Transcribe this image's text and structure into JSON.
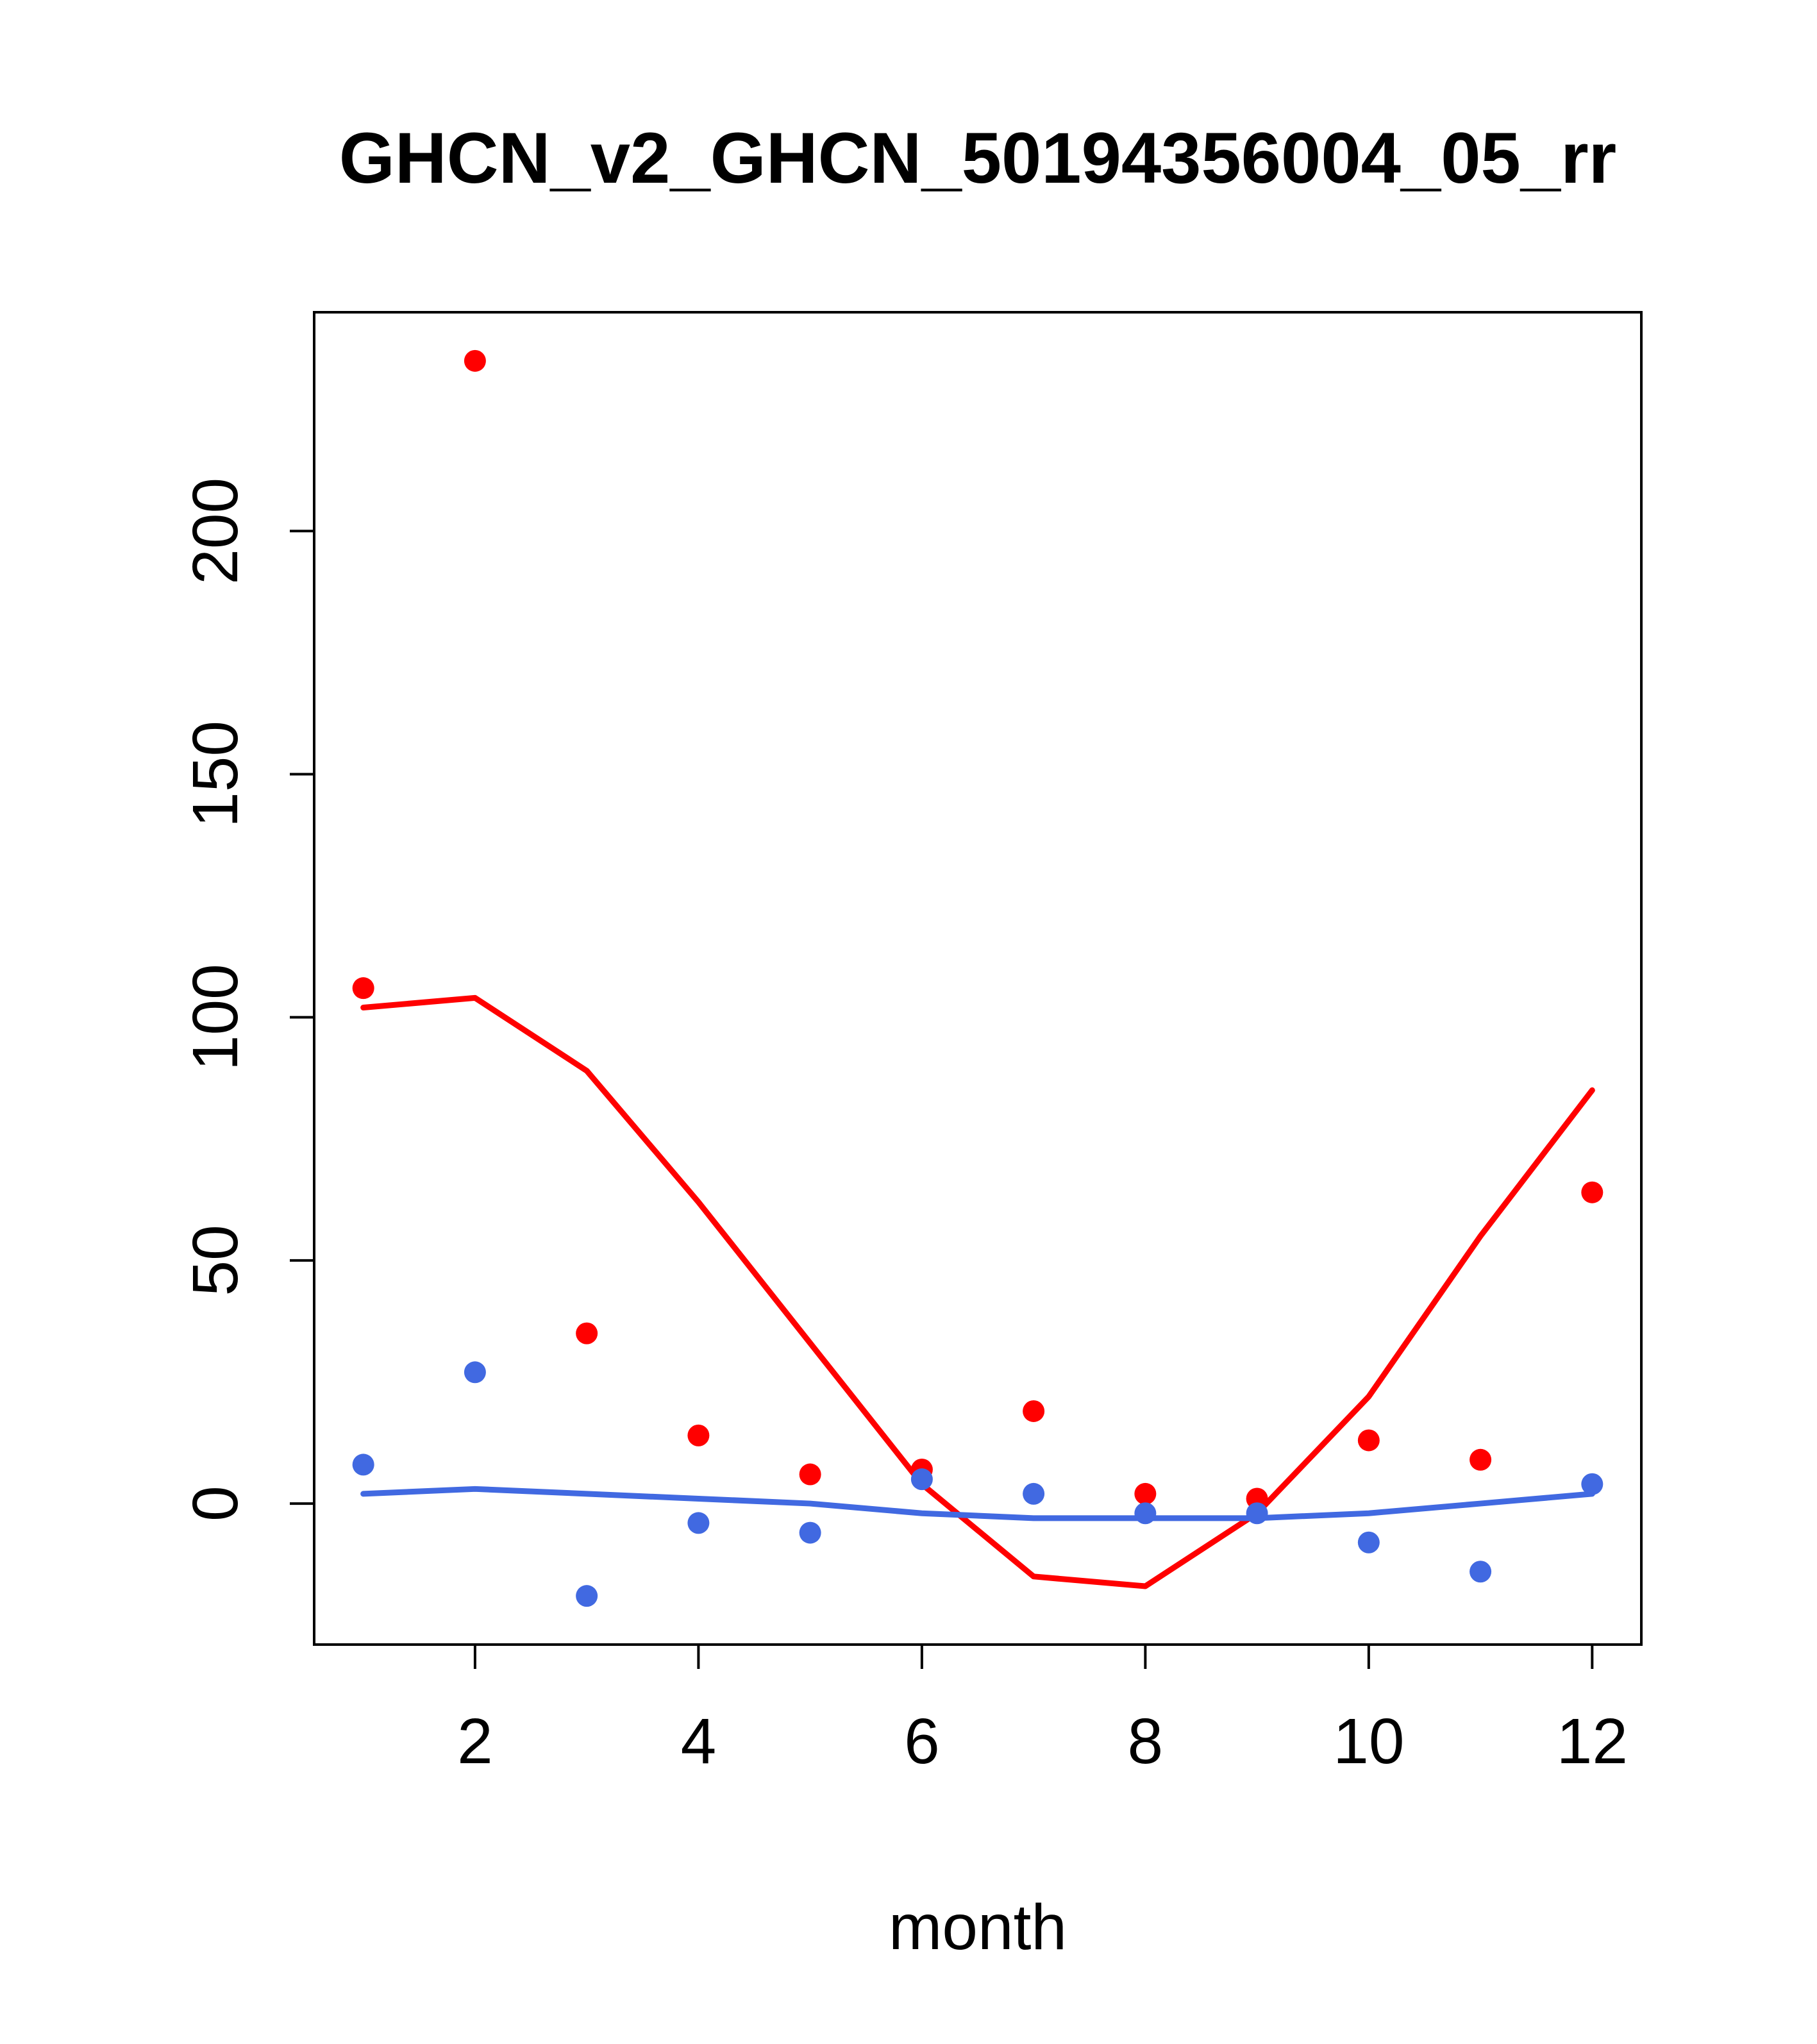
{
  "chart_data": {
    "type": "scatter",
    "title": "GHCN_v2_GHCN_50194356004_05_rr",
    "xlabel": "month",
    "ylabel": "",
    "x": [
      1,
      2,
      3,
      4,
      5,
      6,
      7,
      8,
      9,
      10,
      11,
      12
    ],
    "x_ticks": [
      2,
      4,
      6,
      8,
      10,
      12
    ],
    "y_ticks": [
      0,
      50,
      100,
      150,
      200
    ],
    "xlim": [
      0.56,
      12.44
    ],
    "ylim": [
      -29,
      245
    ],
    "grid": false,
    "legend": "none",
    "colors": {
      "red": "#ff0000",
      "blue": "#4169e1"
    },
    "series": [
      {
        "name": "red-points",
        "kind": "points",
        "color": "#ff0000",
        "values": [
          106,
          235,
          35,
          14,
          6,
          7,
          19,
          2,
          1,
          13,
          9,
          64
        ]
      },
      {
        "name": "blue-points",
        "kind": "points",
        "color": "#4169e1",
        "values": [
          8,
          27,
          -19,
          -4,
          -6,
          5,
          2,
          -2,
          -2,
          -8,
          -14,
          4
        ]
      },
      {
        "name": "red-line",
        "kind": "line",
        "color": "#ff0000",
        "values": [
          102,
          104,
          89,
          62,
          33,
          4,
          -15,
          -17,
          -2,
          22,
          55,
          85
        ]
      },
      {
        "name": "blue-line",
        "kind": "line",
        "color": "#4169e1",
        "values": [
          2,
          3,
          2,
          1,
          0,
          -2,
          -3,
          -3,
          -3,
          -2,
          0,
          2
        ]
      }
    ]
  }
}
